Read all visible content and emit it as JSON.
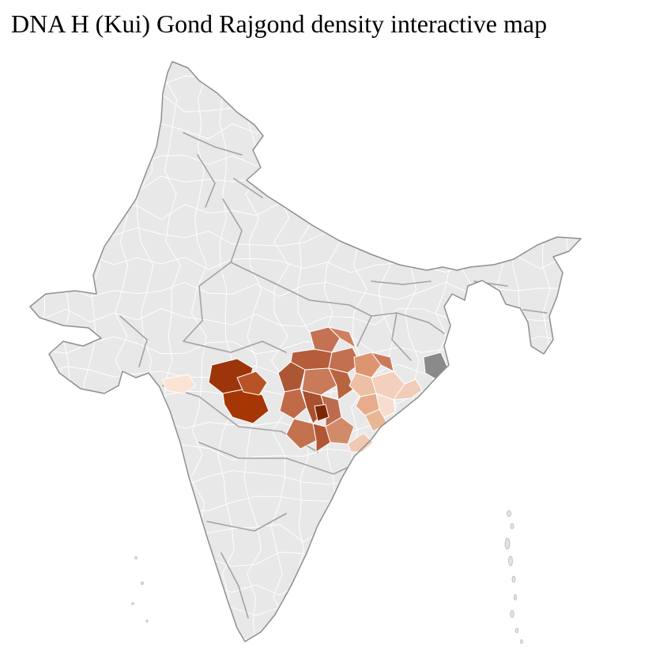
{
  "title": "DNA H (Kui) Gond Rajgond density interactive map",
  "map": {
    "type": "choropleth",
    "colors": {
      "background": "#ffffff",
      "land": "#e8e8e8",
      "district_border": "#ffffff",
      "state_border": "#a3a3a3",
      "outline": "#8f8f8f",
      "island": "#e3e3e3",
      "nodata": "#8a8a8a"
    },
    "density_scale": [
      "#fbe3d3",
      "#f3d0bd",
      "#e8ac8c",
      "#d28b68",
      "#bd6b4e",
      "#a9502d",
      "#a63603",
      "#7f2704"
    ],
    "regions": [
      {
        "color": "#9c3509"
      },
      {
        "color": "#a63603"
      },
      {
        "color": "#b85325"
      },
      {
        "color": "#fbe3d3"
      },
      {
        "color": "#c47253"
      },
      {
        "color": "#cf8061"
      },
      {
        "color": "#b55c3a"
      },
      {
        "color": "#c2704f"
      },
      {
        "color": "#ad5634"
      },
      {
        "color": "#c97a58"
      },
      {
        "color": "#b96440"
      },
      {
        "color": "#c06a47"
      },
      {
        "color": "#a9502d"
      },
      {
        "color": "#bd6b4e"
      },
      {
        "color": "#7f2704"
      },
      {
        "color": "#c3714e"
      },
      {
        "color": "#b25736"
      },
      {
        "color": "#dd9471"
      },
      {
        "color": "#c97a5a"
      },
      {
        "color": "#edbfa4"
      },
      {
        "color": "#f3d0bd"
      },
      {
        "color": "#e8ac8c"
      },
      {
        "color": "#f6ddcf"
      },
      {
        "color": "#eab795"
      },
      {
        "color": "#f0cdb9"
      },
      {
        "color": "#d28b68"
      },
      {
        "color": "#f0c9b4"
      }
    ]
  }
}
